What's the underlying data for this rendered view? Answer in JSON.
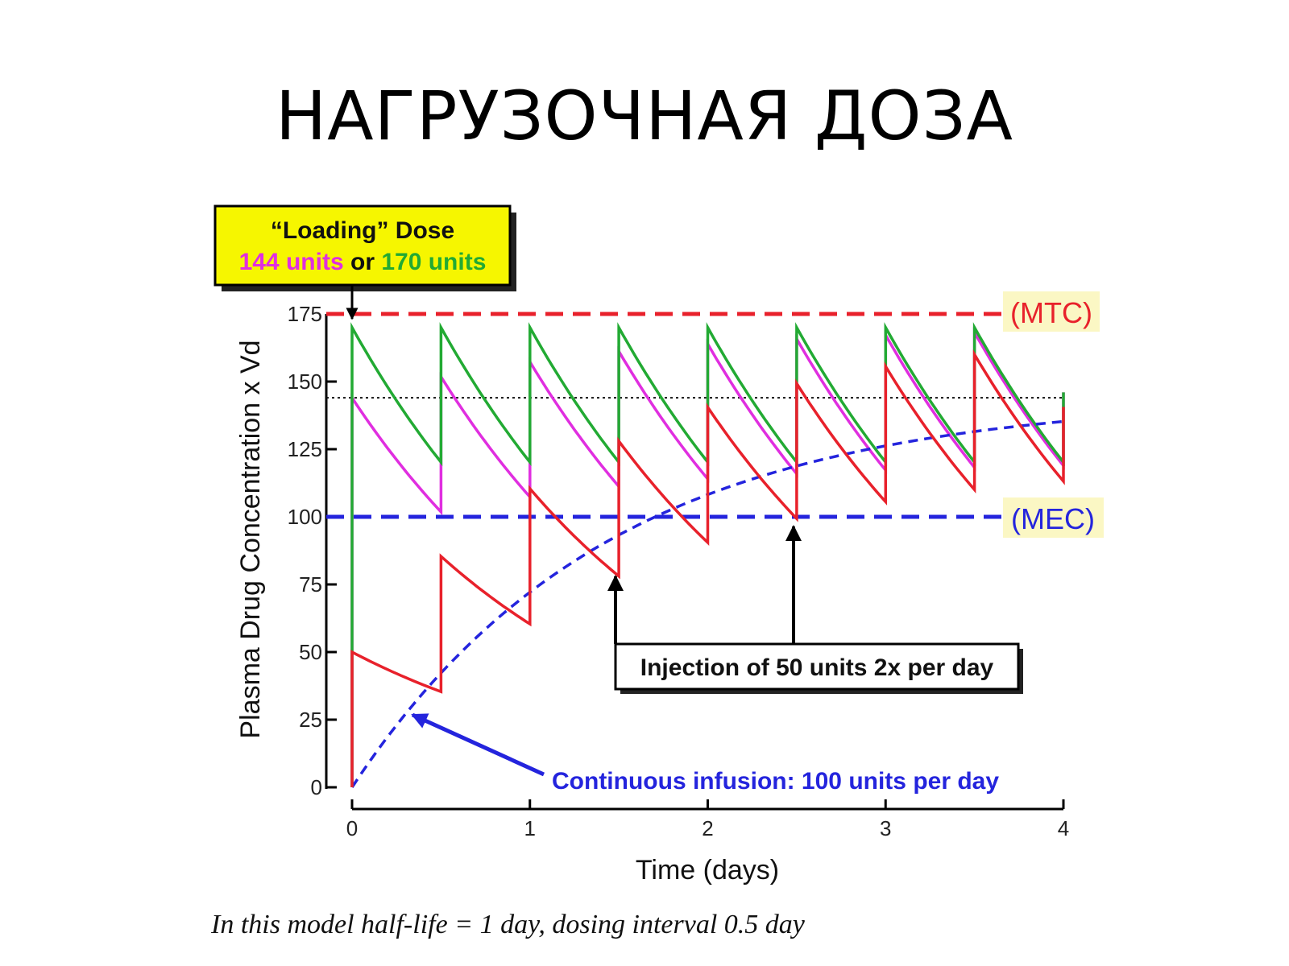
{
  "slide": {
    "title": "НАГРУЗОЧНАЯ ДОЗА"
  },
  "caption": "In this model half-life = 1 day, dosing interval 0.5 day",
  "colors": {
    "maintenance_only": "#e8212b",
    "loading_144": "#e02ee0",
    "loading_170": "#22aa33",
    "infusion": "#2424dd",
    "mtc": "#e8212b",
    "mec": "#2424dd",
    "label_highlight": "#fbf7c4",
    "callout_fill": "#f6f600"
  },
  "chart_data": {
    "type": "line",
    "xlabel": "Time (days)",
    "ylabel": "Plasma Drug Concentration x Vd",
    "xlim": [
      0,
      4
    ],
    "ylim": [
      0,
      175
    ],
    "x_ticks": [
      "0",
      "1",
      "2",
      "3",
      "4"
    ],
    "y_ticks": [
      "0",
      "25",
      "50",
      "75",
      "100",
      "125",
      "150",
      "175"
    ],
    "grid": false,
    "half_life_days": 1,
    "dosing_interval_days": 0.5,
    "maintenance_dose": 50,
    "reference_lines": [
      {
        "name": "(MTC)",
        "y": 175,
        "style": "dashed",
        "color": "#e8212b"
      },
      {
        "name": "(MEC)",
        "y": 100,
        "style": "dashed",
        "color": "#2424dd"
      },
      {
        "name": "",
        "y": 144,
        "style": "dotted",
        "color": "#111111"
      }
    ],
    "series": [
      {
        "key": "maintenance_only",
        "initial_dose": 50,
        "color": "#e8212b",
        "peaks": [
          50,
          85.4,
          110.4,
          128.0,
          140.5,
          149.3,
          155.6,
          160.0
        ],
        "troughs": [
          35.4,
          60.4,
          78.0,
          90.5,
          99.3,
          105.6,
          110.0,
          113.2
        ]
      },
      {
        "key": "loading_144",
        "initial_dose": 144,
        "color": "#e02ee0",
        "peaks": [
          144,
          151.8,
          157.3,
          161.2,
          163.9,
          165.8,
          167.2,
          168.2
        ],
        "troughs": [
          101.8,
          107.3,
          111.2,
          113.9,
          115.8,
          117.2,
          118.2,
          118.9
        ]
      },
      {
        "key": "loading_170",
        "initial_dose": 170,
        "color": "#22aa33",
        "peaks": [
          170,
          170,
          170,
          170,
          170,
          170,
          170,
          170
        ],
        "troughs": [
          120.2,
          120.2,
          120.2,
          120.2,
          120.2,
          120.2,
          120.2,
          120.2
        ]
      },
      {
        "key": "infusion",
        "rate_per_day": 100,
        "color": "#2424dd",
        "style": "dashed",
        "points": [
          [
            0,
            0
          ],
          [
            0.5,
            42.3
          ],
          [
            1,
            72.1
          ],
          [
            1.5,
            93.3
          ],
          [
            2,
            108.2
          ],
          [
            2.5,
            118.7
          ],
          [
            3,
            126.1
          ],
          [
            3.5,
            131.4
          ],
          [
            4,
            135.2
          ]
        ]
      }
    ],
    "annotations": {
      "loading_title": "“Loading” Dose",
      "loading_144": "144 units",
      "loading_or": "or",
      "loading_170": "170 units",
      "injection": "Injection of 50 units 2x per day",
      "infusion": "Continuous infusion: 100 units per day"
    }
  }
}
